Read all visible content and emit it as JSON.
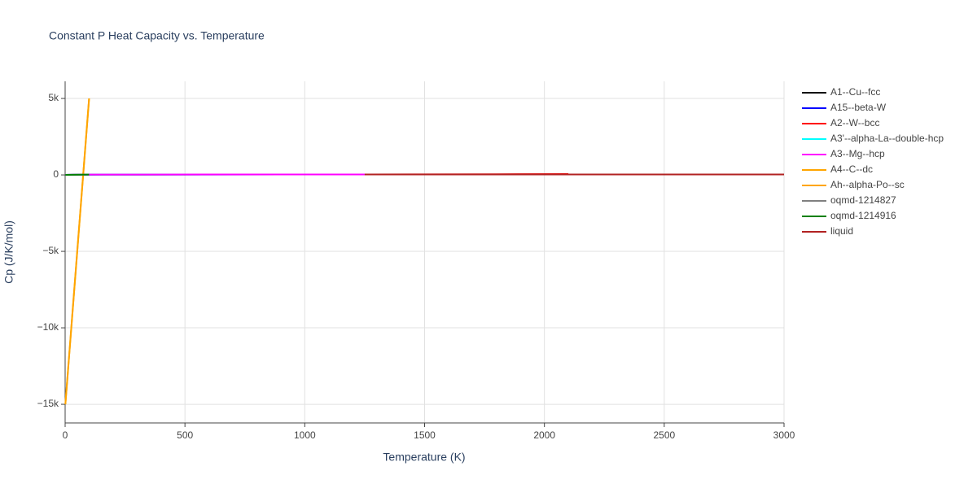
{
  "chart_data": {
    "type": "line",
    "title": "Constant P Heat Capacity vs. Temperature",
    "x_label": "Temperature (K)",
    "y_label": "Cp (J/K/mol)",
    "xlim": [
      0,
      3000
    ],
    "xticks": [
      0,
      500,
      1000,
      1500,
      2000,
      2500,
      3000
    ],
    "ylim": [
      -16220,
      6120
    ],
    "yticks": [
      {
        "value": 5000,
        "label": "5k"
      },
      {
        "value": 0,
        "label": "0"
      },
      {
        "value": -5000,
        "label": "−5k"
      },
      {
        "value": -10000,
        "label": "−10k"
      },
      {
        "value": -15000,
        "label": "−15k"
      }
    ],
    "grid": true,
    "legend": "right",
    "series": [
      {
        "name": "A1--Cu--fcc",
        "color": "#000000",
        "x": [
          1,
          100,
          300,
          600,
          900,
          1250
        ],
        "values": [
          0,
          20,
          25,
          27,
          29,
          31
        ]
      },
      {
        "name": "A15--beta-W",
        "color": "#0000ff",
        "x": [
          1,
          100,
          300,
          600,
          900,
          1250
        ],
        "values": [
          0,
          19,
          24,
          26,
          28,
          30
        ]
      },
      {
        "name": "A2--W--bcc",
        "color": "#ff0000",
        "x": [
          1250,
          1500,
          1800,
          2100
        ],
        "values": [
          33,
          38,
          45,
          55
        ]
      },
      {
        "name": "A3'--alpha-La--double-hcp",
        "color": "#00ffff",
        "x": [
          1,
          100,
          300,
          600,
          900,
          1250
        ],
        "values": [
          0,
          20,
          25,
          27,
          29,
          31
        ]
      },
      {
        "name": "A3--Mg--hcp",
        "color": "#ff00ff",
        "x": [
          1,
          100,
          300,
          600,
          900,
          1250
        ],
        "values": [
          0,
          20,
          25,
          27,
          29,
          31
        ]
      },
      {
        "name": "A4--C--dc",
        "color": "#ffa500",
        "x": [
          1,
          100
        ],
        "values": [
          -15000,
          5000
        ]
      },
      {
        "name": "Ah--alpha-Po--sc",
        "color": "#ffa500",
        "x": [
          1,
          100
        ],
        "values": [
          -15000,
          5000
        ]
      },
      {
        "name": "oqmd-1214827",
        "color": "#808080",
        "x": [
          1,
          100
        ],
        "values": [
          0,
          20
        ]
      },
      {
        "name": "oqmd-1214916",
        "color": "#008000",
        "x": [
          1,
          100
        ],
        "values": [
          0,
          20
        ]
      },
      {
        "name": "liquid",
        "color": "#b22222",
        "x": [
          1250,
          2000,
          3000
        ],
        "values": [
          33,
          33,
          33
        ]
      }
    ]
  }
}
